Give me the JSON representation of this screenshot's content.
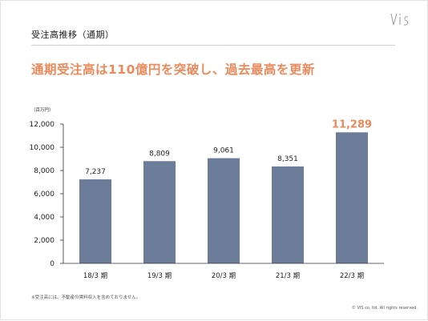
{
  "page_title": "受注高推移（通期）",
  "headline": "通期受注高は110億円を突破し、過去最高を更新",
  "footnote": "※受注高には、不動産の賃料収入を含めておりません。",
  "copyright": "© VIS co. ltd. All rights reserved.",
  "colors": {
    "bar": "#6c7d99",
    "highlight_label": "#ec8a5c",
    "text": "#222222",
    "axis": "#333333"
  },
  "chart_data": {
    "type": "bar",
    "unit_label": "（百万円）",
    "categories": [
      "18/3 期",
      "19/3 期",
      "20/3 期",
      "21/3 期",
      "22/3 期"
    ],
    "values": [
      7237,
      8809,
      9061,
      8351,
      11289
    ],
    "value_labels": [
      "7,237",
      "8,809",
      "9,061",
      "8,351",
      "11,289"
    ],
    "highlight_index": 4,
    "ylim": [
      0,
      12000
    ],
    "yticks": [
      0,
      2000,
      4000,
      6000,
      8000,
      10000,
      12000
    ],
    "ytick_labels": [
      "0",
      "2,000",
      "4,000",
      "6,000",
      "8,000",
      "10,000",
      "12,000"
    ],
    "grid": false
  }
}
